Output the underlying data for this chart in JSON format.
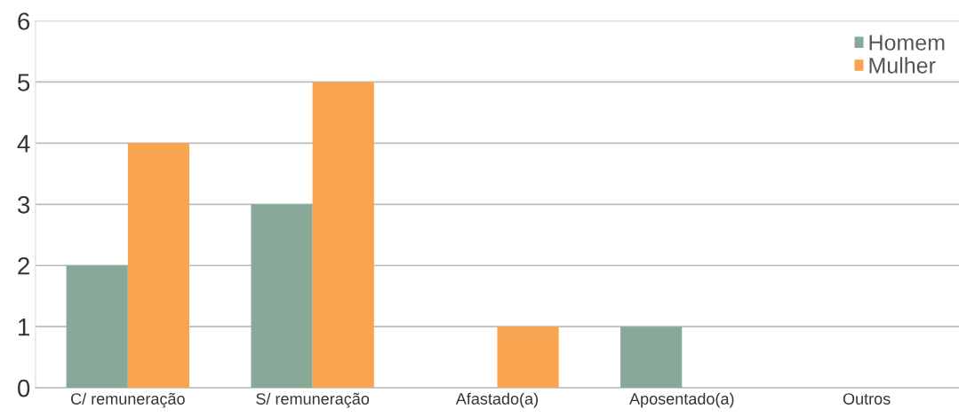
{
  "chart_data": {
    "type": "bar",
    "categories": [
      "C/ remuneração",
      "S/ remuneração",
      "Afastado(a)",
      "Aposentado(a)",
      "Outros"
    ],
    "series": [
      {
        "name": "Homem",
        "color": "#88a898",
        "values": [
          2,
          3,
          0,
          1,
          0
        ]
      },
      {
        "name": "Mulher",
        "color": "#f9a54f",
        "values": [
          4,
          5,
          1,
          0,
          0
        ]
      }
    ],
    "ylim": [
      0,
      6
    ],
    "yticks": [
      0,
      1,
      2,
      3,
      4,
      5,
      6
    ],
    "grid": "y",
    "legend": "top right"
  }
}
